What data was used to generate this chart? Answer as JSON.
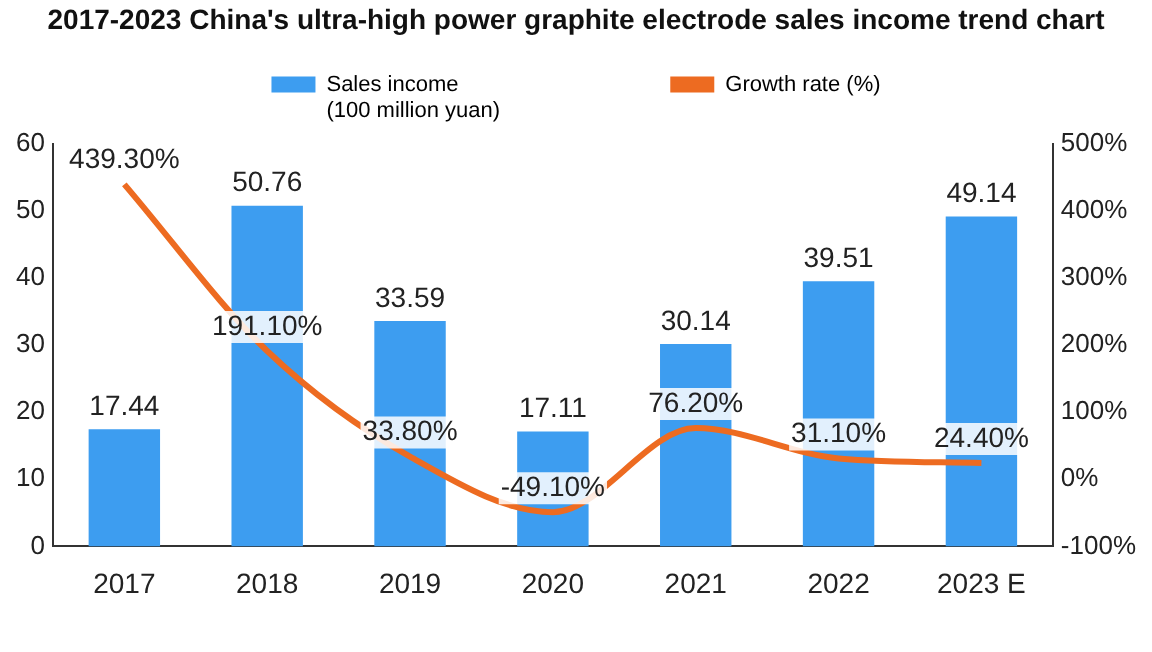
{
  "chart_data": {
    "type": "bar",
    "title": "2017-2023 China's ultra-high power graphite electrode sales income trend chart",
    "categories": [
      "2017",
      "2018",
      "2019",
      "2020",
      "2021",
      "2022",
      "2023 E"
    ],
    "series": [
      {
        "name": "Sales income\n(100 million yuan)",
        "color": "#3d9df0",
        "values": [
          17.44,
          50.76,
          33.59,
          17.11,
          30.14,
          39.51,
          49.14
        ],
        "value_labels": [
          "17.44",
          "50.76",
          "33.59",
          "17.11",
          "30.14",
          "39.51",
          "49.14"
        ]
      },
      {
        "name": "Growth rate (%)",
        "type": "line",
        "axis": "y2",
        "color": "#ed6b21",
        "values": [
          439.3,
          191.1,
          33.8,
          -49.1,
          76.2,
          31.1,
          24.4
        ],
        "value_labels": [
          "439.30%",
          "191.10%",
          "33.80%",
          "-49.10%",
          "76.20%",
          "31.10%",
          "24.40%"
        ]
      }
    ],
    "ylim": [
      0,
      60
    ],
    "yticks": [
      0,
      10,
      20,
      30,
      40,
      50,
      60
    ],
    "y2lim": [
      -100,
      500
    ],
    "y2ticks": [
      {
        "value": -100,
        "label": "-100%"
      },
      {
        "value": 0,
        "label": "0%"
      },
      {
        "value": 100,
        "label": "100%"
      },
      {
        "value": 200,
        "label": "200%"
      },
      {
        "value": 300,
        "label": "300%"
      },
      {
        "value": 400,
        "label": "400%"
      },
      {
        "value": 500,
        "label": "500%"
      }
    ],
    "legend": "top"
  }
}
